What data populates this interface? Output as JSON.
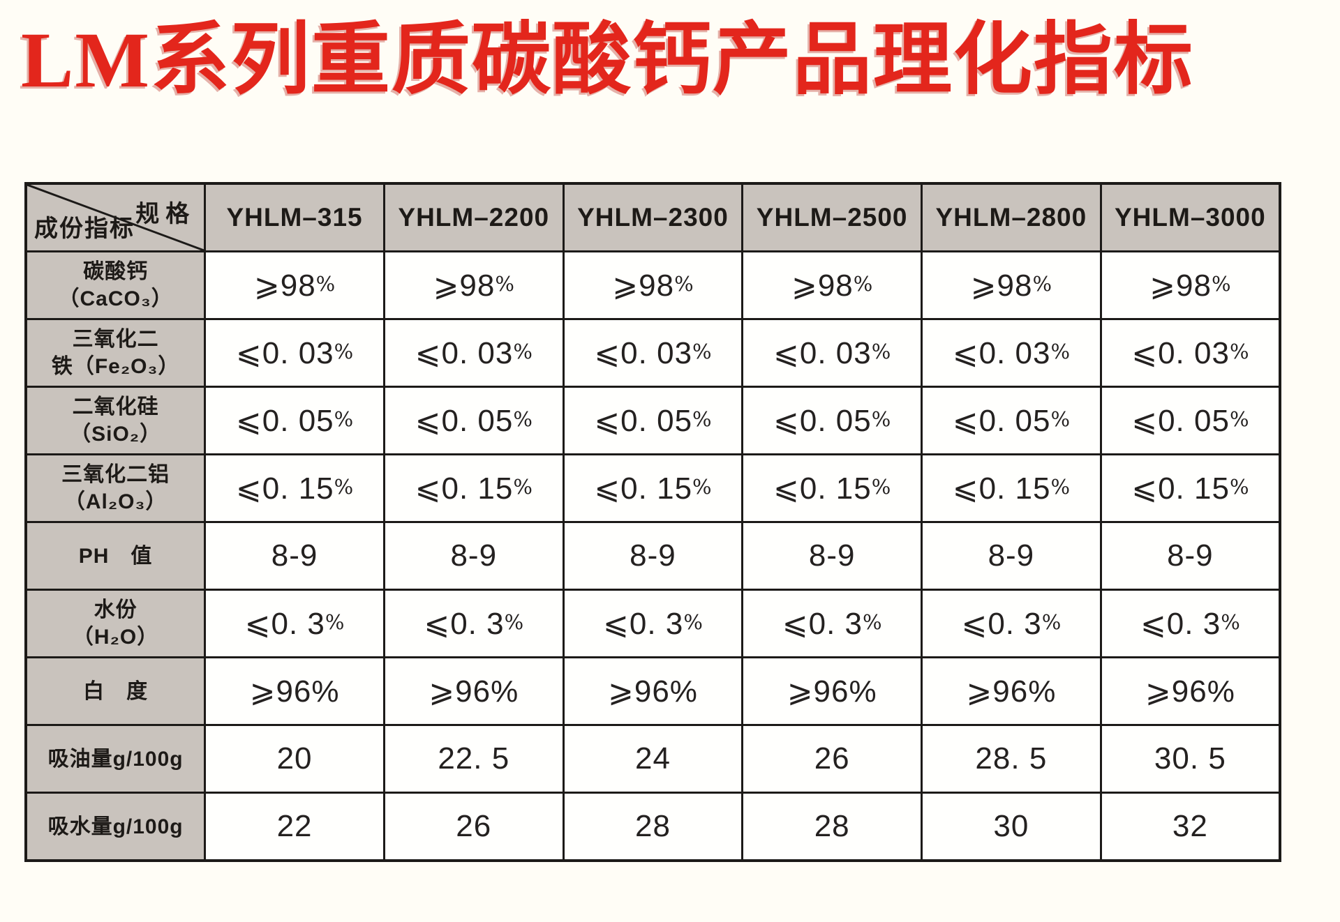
{
  "title": "LM系列重质碳酸钙产品理化指标",
  "colors": {
    "title_red": "#e3261c",
    "header_fill": "#c9c3bd",
    "cell_white": "#fffffd",
    "border": "#1c1a18",
    "page_bg": "#fffdf6"
  },
  "table": {
    "corner": {
      "top_right": "规格",
      "bottom_left": "成份指标"
    },
    "columns": [
      "YHLM–315",
      "YHLM–2200",
      "YHLM–2300",
      "YHLM–2500",
      "YHLM–2800",
      "YHLM–3000"
    ],
    "rows": [
      {
        "label": "碳酸钙\n（CaCO₃）",
        "small_pct": true,
        "values": [
          "⩾98%",
          "⩾98%",
          "⩾98%",
          "⩾98%",
          "⩾98%",
          "⩾98%"
        ]
      },
      {
        "label": "三氧化二\n铁（Fe₂O₃）",
        "small_pct": true,
        "values": [
          "⩽0. 03%",
          "⩽0. 03%",
          "⩽0. 03%",
          "⩽0. 03%",
          "⩽0. 03%",
          "⩽0. 03%"
        ]
      },
      {
        "label": "二氧化硅\n（SiO₂）",
        "small_pct": true,
        "values": [
          "⩽0. 05%",
          "⩽0. 05%",
          "⩽0. 05%",
          "⩽0. 05%",
          "⩽0. 05%",
          "⩽0. 05%"
        ]
      },
      {
        "label": "三氧化二铝\n（Al₂O₃）",
        "small_pct": true,
        "values": [
          "⩽0. 15%",
          "⩽0. 15%",
          "⩽0. 15%",
          "⩽0. 15%",
          "⩽0. 15%",
          "⩽0. 15%"
        ]
      },
      {
        "label": "PH　值",
        "small_pct": false,
        "values": [
          "8-9",
          "8-9",
          "8-9",
          "8-9",
          "8-9",
          "8-9"
        ]
      },
      {
        "label": "水份\n（H₂O）",
        "small_pct": true,
        "values": [
          "⩽0. 3%",
          "⩽0. 3%",
          "⩽0. 3%",
          "⩽0. 3%",
          "⩽0. 3%",
          "⩽0. 3%"
        ]
      },
      {
        "label": "白　度",
        "small_pct": false,
        "values": [
          "⩾96%",
          "⩾96%",
          "⩾96%",
          "⩾96%",
          "⩾96%",
          "⩾96%"
        ]
      },
      {
        "label": "吸油量g/100g",
        "small_pct": false,
        "values": [
          "20",
          "22. 5",
          "24",
          "26",
          "28. 5",
          "30. 5"
        ]
      },
      {
        "label": "吸水量g/100g",
        "small_pct": false,
        "values": [
          "22",
          "26",
          "28",
          "28",
          "30",
          "32"
        ]
      }
    ]
  }
}
